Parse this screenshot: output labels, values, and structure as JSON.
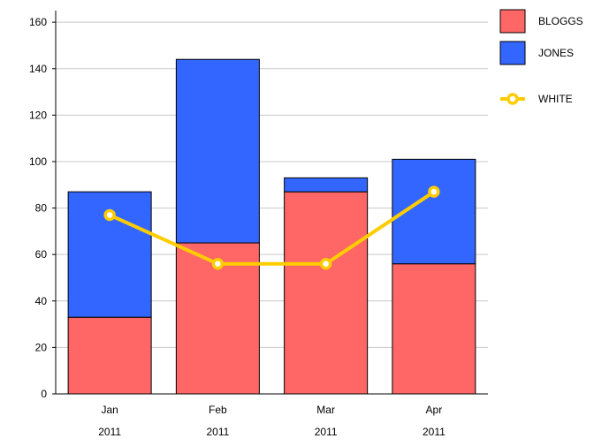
{
  "chart_data": {
    "type": "bar",
    "stacked": true,
    "categories": [
      {
        "month": "Jan",
        "year": "2011"
      },
      {
        "month": "Feb",
        "year": "2011"
      },
      {
        "month": "Mar",
        "year": "2011"
      },
      {
        "month": "Apr",
        "year": "2011"
      }
    ],
    "series": [
      {
        "name": "BLOGGS",
        "kind": "bar",
        "color": "#ff6666",
        "values": [
          33,
          65,
          87,
          56
        ]
      },
      {
        "name": "JONES",
        "kind": "bar",
        "color": "#3366ff",
        "values": [
          54,
          79,
          6,
          45
        ]
      },
      {
        "name": "WHITE",
        "kind": "line",
        "color": "#ffcc00",
        "values": [
          77,
          56,
          56,
          87
        ]
      }
    ],
    "ylim": [
      0,
      165
    ],
    "yticks": [
      "0",
      "20",
      "40",
      "60",
      "80",
      "100",
      "120",
      "140",
      "160"
    ],
    "grid": true,
    "legend_position": "right"
  }
}
